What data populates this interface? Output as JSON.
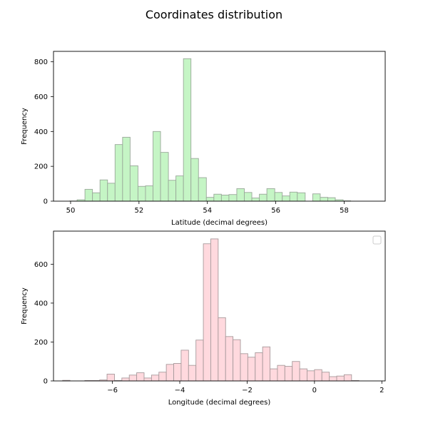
{
  "figure": {
    "title": "Coordinates distribution"
  },
  "chart_data": [
    {
      "type": "histogram",
      "title": "",
      "xlabel": "Latitude (decimal degrees)",
      "ylabel": "Frequency",
      "bin_edges": [
        49.97,
        50.19,
        50.42,
        50.64,
        50.86,
        51.08,
        51.3,
        51.52,
        51.74,
        51.97,
        52.19,
        52.41,
        52.63,
        52.86,
        53.08,
        53.3,
        53.52,
        53.74,
        53.97,
        54.19,
        54.41,
        54.63,
        54.86,
        55.08,
        55.3,
        55.52,
        55.74,
        55.97,
        56.19,
        56.41,
        56.63,
        56.86,
        57.08,
        57.3,
        57.52,
        57.74,
        57.97,
        58.19,
        58.41,
        58.63,
        58.86
      ],
      "counts": [
        1,
        8,
        68,
        48,
        122,
        103,
        325,
        367,
        203,
        85,
        88,
        400,
        280,
        120,
        145,
        818,
        245,
        135,
        22,
        40,
        35,
        38,
        72,
        50,
        18,
        40,
        72,
        50,
        30,
        52,
        48,
        0,
        42,
        22,
        20,
        8,
        2,
        0,
        0,
        0
      ],
      "xlim": [
        49.5,
        59.2
      ],
      "ylim": [
        0,
        860
      ],
      "xticks": [
        50,
        52,
        54,
        56,
        58
      ],
      "yticks": [
        0,
        200,
        400,
        600,
        800
      ],
      "bar_color": "#c5f5c5",
      "edge_color": "#9aa89a",
      "grid": false
    },
    {
      "type": "histogram",
      "title": "",
      "xlabel": "Longitude (decimal degrees)",
      "ylabel": "Frequency",
      "bin_edges": [
        -7.48,
        -7.26,
        -7.04,
        -6.82,
        -6.6,
        -6.38,
        -6.16,
        -5.94,
        -5.72,
        -5.5,
        -5.28,
        -5.06,
        -4.84,
        -4.62,
        -4.4,
        -4.18,
        -3.96,
        -3.74,
        -3.52,
        -3.3,
        -3.08,
        -2.86,
        -2.64,
        -2.42,
        -2.2,
        -1.98,
        -1.76,
        -1.54,
        -1.32,
        -1.1,
        -0.88,
        -0.66,
        -0.44,
        -0.22,
        0.0,
        0.22,
        0.44,
        0.66,
        0.88,
        1.1,
        1.32,
        1.54
      ],
      "counts": [
        3,
        0,
        0,
        2,
        2,
        5,
        35,
        2,
        15,
        30,
        42,
        15,
        30,
        45,
        85,
        90,
        158,
        80,
        210,
        705,
        730,
        325,
        228,
        212,
        140,
        122,
        145,
        175,
        62,
        80,
        75,
        100,
        62,
        52,
        58,
        45,
        22,
        25,
        32,
        2,
        0
      ],
      "xlim": [
        -7.75,
        2.1
      ],
      "ylim": [
        0,
        770
      ],
      "xticks": [
        -6,
        -4,
        -2,
        0,
        2
      ],
      "yticks": [
        0,
        200,
        400,
        600
      ],
      "bar_color": "#ffd9de",
      "edge_color": "#a89a9c",
      "grid": false,
      "legend": "top-right"
    }
  ]
}
